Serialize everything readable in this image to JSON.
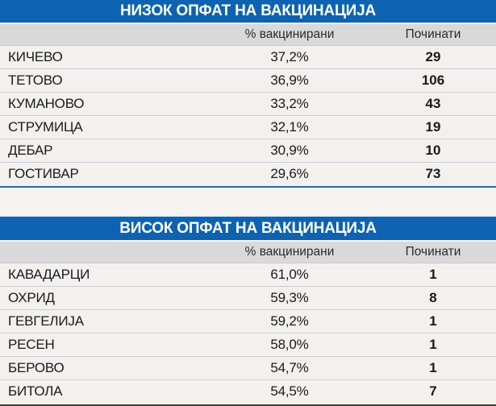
{
  "colors": {
    "header_blue": "#0d63b2",
    "column_header_gray": "#d9d9d9",
    "row_background": "#f2f1ee",
    "row_separator": "#c9ccd8",
    "divider_blue": "#2f6da8",
    "title_text": "#ffffff",
    "body_text": "#1a1a1a"
  },
  "chart_data": [
    {
      "type": "table",
      "title": "НИЗОК ОПФАТ НА ВАКЦИНАЦИЈА",
      "columns": {
        "vaccinated": "% вакцинирани",
        "deaths": "Починати"
      },
      "rows": [
        {
          "city": "КИЧЕВО",
          "vaccinated": "37,2%",
          "deaths": "29"
        },
        {
          "city": "ТЕТОВО",
          "vaccinated": "36,9%",
          "deaths": "106"
        },
        {
          "city": "КУМАНОВО",
          "vaccinated": "33,2%",
          "deaths": "43"
        },
        {
          "city": "СТРУМИЦА",
          "vaccinated": "32,1%",
          "deaths": "19"
        },
        {
          "city": "ДЕБАР",
          "vaccinated": "30,9%",
          "deaths": "10"
        },
        {
          "city": "ГОСТИВАР",
          "vaccinated": "29,6%",
          "deaths": "73"
        }
      ]
    },
    {
      "type": "table",
      "title": "ВИСОК ОПФАТ НА ВАКЦИНАЦИЈА",
      "columns": {
        "vaccinated": "% вакцинирани",
        "deaths": "Починати"
      },
      "rows": [
        {
          "city": "КАВАДАРЦИ",
          "vaccinated": "61,0%",
          "deaths": "1"
        },
        {
          "city": "ОХРИД",
          "vaccinated": "59,3%",
          "deaths": "8"
        },
        {
          "city": "ГЕВГЕЛИЈА",
          "vaccinated": "59,2%",
          "deaths": "1"
        },
        {
          "city": "РЕСЕН",
          "vaccinated": "58,0%",
          "deaths": "1"
        },
        {
          "city": "БЕРОВО",
          "vaccinated": "54,7%",
          "deaths": "1"
        },
        {
          "city": "БИТОЛА",
          "vaccinated": "54,5%",
          "deaths": "7"
        }
      ]
    }
  ]
}
